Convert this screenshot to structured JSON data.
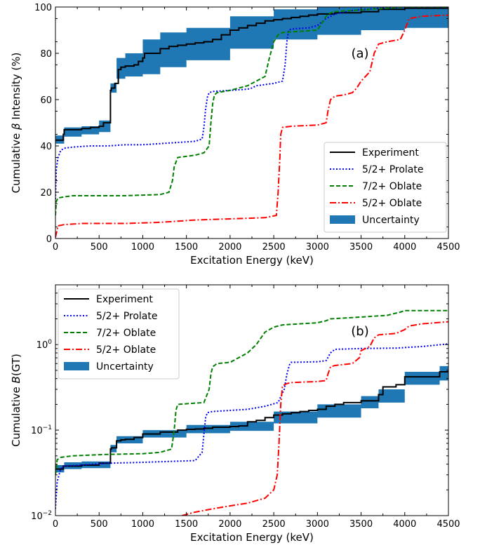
{
  "chart_data": [
    {
      "type": "line",
      "panel_label": "(a)",
      "xlabel": "Excitation Energy (keV)",
      "ylabel_prefix": "Cumulative ",
      "ylabel_symbol": "β",
      "ylabel_suffix": " Intensity (%)",
      "xlim": [
        0,
        4500
      ],
      "ylim": [
        0,
        100
      ],
      "yscale": "linear",
      "xticks": [
        0,
        500,
        1000,
        1500,
        2000,
        2500,
        3000,
        3500,
        4000,
        4500
      ],
      "xtick_labels": [
        "0",
        "500",
        "1000",
        "1500",
        "2000",
        "2500",
        "3000",
        "3500",
        "4000",
        "4500"
      ],
      "yticks": [
        0,
        20,
        40,
        60,
        80,
        100
      ],
      "ytick_labels": [
        "0",
        "20",
        "40",
        "60",
        "80",
        "100"
      ],
      "legend_position": "bottom-right",
      "series": [
        {
          "name": "Experiment",
          "color": "#000000",
          "style": "solid",
          "step": true,
          "x": [
            0,
            90,
            100,
            300,
            400,
            500,
            550,
            600,
            630,
            640,
            680,
            720,
            750,
            800,
            900,
            950,
            1000,
            1020,
            1200,
            1300,
            1400,
            1500,
            1600,
            1700,
            1800,
            1900,
            2000,
            2100,
            2200,
            2300,
            2400,
            2500,
            2600,
            2700,
            2800,
            2900,
            3000,
            3200,
            3500,
            3700,
            4000,
            4500
          ],
          "y": [
            42.5,
            45,
            47,
            47.5,
            48,
            48.5,
            50,
            50,
            64,
            65,
            67,
            73,
            74,
            74.5,
            75,
            76.5,
            78,
            80,
            82,
            83,
            83.5,
            84,
            84.5,
            85,
            86,
            88,
            90,
            91,
            92,
            93,
            94,
            94.5,
            95,
            95.5,
            96,
            96.5,
            97,
            97.5,
            98,
            99,
            99.5,
            99.5
          ]
        },
        {
          "name": "5/2+ Prolate",
          "color": "#0000ee",
          "style": "dotted",
          "x": [
            0,
            10,
            30,
            60,
            100,
            200,
            400,
            600,
            800,
            1000,
            1200,
            1400,
            1600,
            1680,
            1700,
            1720,
            1740,
            1760,
            1800,
            2000,
            2200,
            2250,
            2300,
            2500,
            2600,
            2630,
            2650,
            2670,
            2700,
            2900,
            3000,
            3100,
            3200,
            3400,
            3700,
            4000,
            4500
          ],
          "y": [
            17,
            30,
            35,
            38,
            39,
            39.5,
            40,
            40,
            40.5,
            40.5,
            41,
            41.5,
            42,
            43,
            48,
            56,
            61,
            63,
            63.5,
            64,
            64.5,
            65,
            66,
            67,
            68,
            75,
            85,
            90,
            90.5,
            91,
            92,
            95,
            97,
            98.5,
            99.5,
            100,
            100
          ]
        },
        {
          "name": "7/2+ Oblate",
          "color": "#008000",
          "style": "dashed",
          "x": [
            0,
            10,
            30,
            100,
            200,
            400,
            800,
            1200,
            1300,
            1340,
            1360,
            1380,
            1400,
            1600,
            1700,
            1760,
            1780,
            1800,
            1820,
            1850,
            2000,
            2200,
            2400,
            2450,
            2500,
            2550,
            2600,
            2800,
            3000,
            3050,
            3100,
            3150,
            3200,
            3400,
            3600,
            3800,
            4000,
            4500
          ],
          "y": [
            10,
            16,
            17.5,
            18,
            18.5,
            18.5,
            18.5,
            19,
            20,
            25,
            31,
            33,
            35,
            36,
            37,
            40,
            50,
            58,
            62,
            63,
            64,
            66,
            70,
            78,
            85,
            88,
            89,
            89.5,
            90,
            93,
            96,
            97.5,
            98,
            98.5,
            99,
            99.5,
            100,
            100
          ]
        },
        {
          "name": "5/2+ Oblate",
          "color": "#ff0000",
          "style": "dashdot",
          "x": [
            0,
            30,
            100,
            300,
            800,
            1200,
            1600,
            2000,
            2400,
            2530,
            2550,
            2570,
            2580,
            2600,
            2700,
            3000,
            3100,
            3120,
            3150,
            3200,
            3300,
            3400,
            3450,
            3500,
            3600,
            3650,
            3700,
            3800,
            3950,
            4000,
            4050,
            4200,
            4500
          ],
          "y": [
            0.5,
            5.5,
            6,
            6.5,
            6.5,
            7,
            8,
            8.5,
            9,
            10,
            20,
            35,
            45,
            48,
            48.5,
            49,
            50,
            55,
            60,
            61.5,
            62,
            63,
            65,
            68,
            72,
            80,
            84,
            85,
            86,
            90,
            95,
            96,
            96.5
          ]
        },
        {
          "name": "Uncertainty",
          "color": "#1f77b4",
          "type": "band",
          "x": [
            0,
            100,
            300,
            500,
            630,
            700,
            800,
            1000,
            1200,
            1500,
            2000,
            2500,
            3000,
            3500,
            4000,
            4500
          ],
          "lower": [
            41,
            44,
            45,
            46,
            63,
            69,
            70,
            71,
            74,
            77,
            82,
            86,
            88,
            90,
            91,
            91.5
          ],
          "upper": [
            44.5,
            48,
            48.5,
            51,
            67,
            78,
            80,
            86,
            89,
            91,
            96,
            99,
            100,
            100,
            100,
            100
          ]
        }
      ]
    },
    {
      "type": "line",
      "panel_label": "(b)",
      "xlabel": "Excitation Energy (keV)",
      "ylabel_prefix": "Cumulative ",
      "ylabel_symbol": "B",
      "ylabel_suffix": "(GT)",
      "xlim": [
        0,
        4500
      ],
      "ylim": [
        0.01,
        5
      ],
      "yscale": "log",
      "xticks": [
        0,
        500,
        1000,
        1500,
        2000,
        2500,
        3000,
        3500,
        4000,
        4500
      ],
      "xtick_labels": [
        "0",
        "500",
        "1000",
        "1500",
        "2000",
        "2500",
        "3000",
        "3500",
        "4000",
        "4500"
      ],
      "yticks": [
        0.01,
        0.1,
        1
      ],
      "ytick_base": "10",
      "ytick_exponents": [
        "−2",
        "−1",
        "0"
      ],
      "legend_position": "top-left",
      "series": [
        {
          "name": "Experiment",
          "color": "#000000",
          "style": "solid",
          "step": true,
          "x": [
            0,
            90,
            300,
            500,
            630,
            640,
            700,
            750,
            800,
            900,
            1000,
            1200,
            1400,
            1500,
            1600,
            1700,
            1800,
            1900,
            2000,
            2100,
            2200,
            2300,
            2400,
            2500,
            2600,
            2700,
            2800,
            2900,
            3000,
            3100,
            3200,
            3300,
            3500,
            3700,
            3750,
            3900,
            4000,
            4400,
            4500
          ],
          "y": [
            0.035,
            0.038,
            0.039,
            0.041,
            0.06,
            0.062,
            0.075,
            0.077,
            0.078,
            0.082,
            0.09,
            0.095,
            0.1,
            0.102,
            0.103,
            0.105,
            0.108,
            0.108,
            0.11,
            0.112,
            0.125,
            0.13,
            0.14,
            0.15,
            0.155,
            0.16,
            0.165,
            0.17,
            0.175,
            0.19,
            0.2,
            0.21,
            0.22,
            0.26,
            0.32,
            0.34,
            0.42,
            0.48,
            0.48
          ]
        },
        {
          "name": "5/2+ Prolate",
          "color": "#0000ee",
          "style": "dotted",
          "x": [
            0,
            20,
            60,
            100,
            300,
            600,
            1000,
            1300,
            1600,
            1680,
            1700,
            1720,
            1740,
            1800,
            2000,
            2200,
            2400,
            2550,
            2620,
            2650,
            2680,
            2700,
            3000,
            3100,
            3150,
            3200,
            3500,
            3900,
            4200,
            4500
          ],
          "y": [
            0.012,
            0.025,
            0.035,
            0.038,
            0.039,
            0.041,
            0.042,
            0.043,
            0.044,
            0.055,
            0.09,
            0.14,
            0.16,
            0.165,
            0.17,
            0.175,
            0.19,
            0.21,
            0.3,
            0.45,
            0.58,
            0.62,
            0.63,
            0.65,
            0.8,
            0.88,
            0.9,
            0.91,
            0.95,
            1.02
          ]
        },
        {
          "name": "7/2+ Oblate",
          "color": "#008000",
          "style": "dashed",
          "x": [
            0,
            20,
            60,
            200,
            600,
            1000,
            1200,
            1330,
            1360,
            1380,
            1400,
            1700,
            1760,
            1780,
            1800,
            1850,
            2000,
            2200,
            2300,
            2400,
            2500,
            2600,
            3000,
            3100,
            3150,
            3500,
            3800,
            3950,
            4000,
            4500
          ],
          "y": [
            0.03,
            0.045,
            0.048,
            0.05,
            0.052,
            0.053,
            0.055,
            0.06,
            0.1,
            0.17,
            0.2,
            0.21,
            0.3,
            0.45,
            0.55,
            0.6,
            0.62,
            0.8,
            1.0,
            1.4,
            1.6,
            1.7,
            1.8,
            1.9,
            2.0,
            2.1,
            2.2,
            2.4,
            2.5,
            2.5
          ]
        },
        {
          "name": "5/2+ Oblate",
          "color": "#ff0000",
          "style": "dashdot",
          "x": [
            1450,
            1600,
            1800,
            2000,
            2200,
            2400,
            2500,
            2540,
            2560,
            2580,
            2600,
            2650,
            2700,
            3000,
            3100,
            3120,
            3150,
            3200,
            3400,
            3480,
            3500,
            3600,
            3650,
            3700,
            3900,
            4000,
            4050,
            4200,
            4500
          ],
          "y": [
            0.01,
            0.011,
            0.012,
            0.013,
            0.014,
            0.016,
            0.02,
            0.03,
            0.07,
            0.2,
            0.33,
            0.35,
            0.36,
            0.37,
            0.38,
            0.45,
            0.55,
            0.57,
            0.6,
            0.7,
            0.85,
            0.95,
            1.2,
            1.3,
            1.35,
            1.5,
            1.65,
            1.75,
            1.85
          ]
        },
        {
          "name": "Uncertainty",
          "color": "#1f77b4",
          "type": "band",
          "x": [
            0,
            100,
            300,
            630,
            700,
            1000,
            1500,
            2000,
            2500,
            3000,
            3500,
            3700,
            4000,
            4400,
            4500
          ],
          "lower": [
            0.032,
            0.035,
            0.036,
            0.055,
            0.07,
            0.082,
            0.092,
            0.098,
            0.12,
            0.14,
            0.18,
            0.21,
            0.34,
            0.38,
            0.38
          ],
          "upper": [
            0.039,
            0.042,
            0.043,
            0.067,
            0.085,
            0.1,
            0.115,
            0.125,
            0.165,
            0.2,
            0.25,
            0.3,
            0.48,
            0.56,
            0.57
          ]
        }
      ]
    }
  ]
}
